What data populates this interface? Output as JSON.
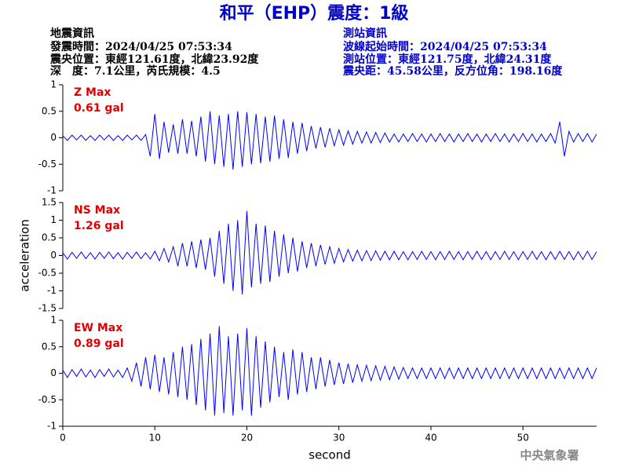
{
  "header": {
    "title": "和平（EHP）震度：1級",
    "left": [
      "地震資訊",
      "發震時間：2024/04/25 07:53:34",
      "震央位置：東經121.61度，北緯23.92度",
      "深　度：7.1公里，芮氏規模：4.5"
    ],
    "right": [
      "測站資訊",
      "波線起始時間：2024/04/25 07:53:34",
      "測站位置：東經121.75度，北緯24.31度",
      "震央距：45.58公里，反方位角：198.16度"
    ]
  },
  "footer": "中央氣象署",
  "chart_data": [
    {
      "type": "line",
      "annotations": [
        "Z Max",
        "0.61 gal"
      ],
      "annotation_color": "#e00000",
      "xlim": [
        0,
        58
      ],
      "ylim": [
        -1,
        1
      ],
      "yticks": [
        -1,
        -0.5,
        0,
        0.5,
        1
      ],
      "x": [
        0,
        0.5,
        1,
        1.5,
        2,
        2.5,
        3,
        3.5,
        4,
        4.5,
        5,
        5.5,
        6,
        6.5,
        7,
        7.5,
        8,
        8.5,
        9,
        9.5,
        10,
        10.5,
        11,
        11.5,
        12,
        12.5,
        13,
        13.5,
        14,
        14.5,
        15,
        15.5,
        16,
        16.5,
        17,
        17.5,
        18,
        18.5,
        19,
        19.5,
        20,
        20.5,
        21,
        21.5,
        22,
        22.5,
        23,
        23.5,
        24,
        24.5,
        25,
        25.5,
        26,
        26.5,
        27,
        27.5,
        28,
        28.5,
        29,
        29.5,
        30,
        30.5,
        31,
        31.5,
        32,
        32.5,
        33,
        33.5,
        34,
        34.5,
        35,
        35.5,
        36,
        36.5,
        37,
        37.5,
        38,
        38.5,
        39,
        39.5,
        40,
        40.5,
        41,
        41.5,
        42,
        42.5,
        43,
        43.5,
        44,
        44.5,
        45,
        45.5,
        46,
        46.5,
        47,
        47.5,
        48,
        48.5,
        49,
        49.5,
        50,
        50.5,
        51,
        51.5,
        52,
        52.5,
        53,
        53.5,
        54,
        54.5,
        55,
        55.5,
        56,
        56.5,
        57,
        57.5,
        58
      ],
      "series": [
        {
          "color": "#0000ff",
          "values": [
            0.04,
            -0.05,
            0.05,
            -0.04,
            0.05,
            -0.05,
            0.04,
            -0.05,
            0.05,
            -0.04,
            0.05,
            -0.05,
            0.04,
            -0.05,
            0.05,
            -0.04,
            0.05,
            -0.05,
            0.06,
            -0.35,
            0.45,
            -0.4,
            0.3,
            -0.28,
            0.25,
            -0.3,
            0.35,
            -0.3,
            0.32,
            -0.35,
            0.4,
            -0.45,
            0.5,
            -0.5,
            0.42,
            -0.55,
            0.45,
            -0.6,
            0.5,
            -0.55,
            0.48,
            -0.5,
            0.45,
            -0.48,
            0.4,
            -0.45,
            0.42,
            -0.4,
            0.35,
            -0.38,
            0.3,
            -0.3,
            0.28,
            -0.25,
            0.22,
            -0.2,
            0.2,
            -0.18,
            0.18,
            -0.15,
            0.15,
            -0.14,
            0.13,
            -0.12,
            0.12,
            -0.1,
            0.11,
            -0.1,
            0.1,
            -0.09,
            0.09,
            -0.08,
            0.07,
            -0.08,
            0.07,
            -0.07,
            0.08,
            -0.07,
            0.07,
            -0.08,
            0.07,
            -0.07,
            0.08,
            -0.07,
            0.07,
            -0.08,
            0.07,
            -0.07,
            0.08,
            -0.07,
            0.07,
            -0.08,
            0.07,
            -0.07,
            0.08,
            -0.07,
            0.07,
            -0.08,
            0.07,
            -0.07,
            0.08,
            -0.07,
            0.07,
            -0.08,
            0.07,
            -0.07,
            0.08,
            -0.1,
            0.3,
            -0.35,
            0.12,
            -0.08,
            0.08,
            -0.07,
            0.08,
            -0.08,
            0.07
          ]
        }
      ]
    },
    {
      "type": "line",
      "annotations": [
        "NS Max",
        "1.26 gal"
      ],
      "annotation_color": "#e00000",
      "ylabel": "acceleration",
      "xlim": [
        0,
        58
      ],
      "ylim": [
        -1.5,
        1.5
      ],
      "yticks": [
        -1.5,
        -1,
        -0.5,
        0,
        0.5,
        1,
        1.5
      ],
      "x": [
        0,
        0.5,
        1,
        1.5,
        2,
        2.5,
        3,
        3.5,
        4,
        4.5,
        5,
        5.5,
        6,
        6.5,
        7,
        7.5,
        8,
        8.5,
        9,
        9.5,
        10,
        10.5,
        11,
        11.5,
        12,
        12.5,
        13,
        13.5,
        14,
        14.5,
        15,
        15.5,
        16,
        16.5,
        17,
        17.5,
        18,
        18.5,
        19,
        19.5,
        20,
        20.5,
        21,
        21.5,
        22,
        22.5,
        23,
        23.5,
        24,
        24.5,
        25,
        25.5,
        26,
        26.5,
        27,
        27.5,
        28,
        28.5,
        29,
        29.5,
        30,
        30.5,
        31,
        31.5,
        32,
        32.5,
        33,
        33.5,
        34,
        34.5,
        35,
        35.5,
        36,
        36.5,
        37,
        37.5,
        38,
        38.5,
        39,
        39.5,
        40,
        40.5,
        41,
        41.5,
        42,
        42.5,
        43,
        43.5,
        44,
        44.5,
        45,
        45.5,
        46,
        46.5,
        47,
        47.5,
        48,
        48.5,
        49,
        49.5,
        50,
        50.5,
        51,
        51.5,
        52,
        52.5,
        53,
        53.5,
        54,
        54.5,
        55,
        55.5,
        56,
        56.5,
        57,
        57.5,
        58
      ],
      "series": [
        {
          "color": "#0000ff",
          "values": [
            0.08,
            -0.1,
            0.09,
            -0.08,
            0.1,
            -0.09,
            0.08,
            -0.1,
            0.09,
            -0.08,
            0.1,
            -0.09,
            0.08,
            -0.1,
            0.09,
            -0.08,
            0.1,
            -0.09,
            0.08,
            -0.1,
            0.12,
            -0.15,
            0.2,
            -0.18,
            0.25,
            -0.3,
            0.35,
            -0.3,
            0.4,
            -0.35,
            0.45,
            -0.4,
            0.5,
            -0.6,
            0.7,
            -0.8,
            0.9,
            -1.0,
            1.0,
            -1.1,
            1.26,
            -0.9,
            0.9,
            -0.8,
            0.85,
            -0.75,
            0.7,
            -0.6,
            0.6,
            -0.5,
            0.5,
            -0.45,
            0.4,
            -0.35,
            0.35,
            -0.3,
            0.3,
            -0.25,
            0.25,
            -0.22,
            0.2,
            -0.18,
            0.17,
            -0.16,
            0.15,
            -0.15,
            0.14,
            -0.14,
            0.13,
            -0.13,
            0.12,
            -0.12,
            0.12,
            -0.12,
            0.11,
            -0.12,
            0.11,
            -0.11,
            0.12,
            -0.11,
            0.11,
            -0.12,
            0.11,
            -0.11,
            0.12,
            -0.11,
            0.11,
            -0.12,
            0.11,
            -0.11,
            0.12,
            -0.11,
            0.11,
            -0.12,
            0.11,
            -0.11,
            0.12,
            -0.11,
            0.11,
            -0.12,
            0.11,
            -0.11,
            0.12,
            -0.11,
            0.11,
            -0.12,
            0.11,
            -0.11,
            0.12,
            -0.11,
            0.11,
            -0.12,
            0.11,
            -0.11,
            0.12,
            -0.11,
            0.11
          ]
        }
      ]
    },
    {
      "type": "line",
      "annotations": [
        "EW Max",
        "0.89 gal"
      ],
      "annotation_color": "#e00000",
      "xlabel": "second",
      "xlim": [
        0,
        58
      ],
      "xticks": [
        0,
        10,
        20,
        30,
        40,
        50
      ],
      "ylim": [
        -1,
        1
      ],
      "yticks": [
        -1,
        -0.5,
        0,
        0.5,
        1
      ],
      "x": [
        0,
        0.5,
        1,
        1.5,
        2,
        2.5,
        3,
        3.5,
        4,
        4.5,
        5,
        5.5,
        6,
        6.5,
        7,
        7.5,
        8,
        8.5,
        9,
        9.5,
        10,
        10.5,
        11,
        11.5,
        12,
        12.5,
        13,
        13.5,
        14,
        14.5,
        15,
        15.5,
        16,
        16.5,
        17,
        17.5,
        18,
        18.5,
        19,
        19.5,
        20,
        20.5,
        21,
        21.5,
        22,
        22.5,
        23,
        23.5,
        24,
        24.5,
        25,
        25.5,
        26,
        26.5,
        27,
        27.5,
        28,
        28.5,
        29,
        29.5,
        30,
        30.5,
        31,
        31.5,
        32,
        32.5,
        33,
        33.5,
        34,
        34.5,
        35,
        35.5,
        36,
        36.5,
        37,
        37.5,
        38,
        38.5,
        39,
        39.5,
        40,
        40.5,
        41,
        41.5,
        42,
        42.5,
        43,
        43.5,
        44,
        44.5,
        45,
        45.5,
        46,
        46.5,
        47,
        47.5,
        48,
        48.5,
        49,
        49.5,
        50,
        50.5,
        51,
        51.5,
        52,
        52.5,
        53,
        53.5,
        54,
        54.5,
        55,
        55.5,
        56,
        56.5,
        57,
        57.5,
        58
      ],
      "series": [
        {
          "color": "#0000ff",
          "values": [
            0.06,
            -0.08,
            0.07,
            -0.06,
            0.08,
            -0.07,
            0.06,
            -0.08,
            0.07,
            -0.06,
            0.08,
            -0.07,
            0.06,
            -0.08,
            0.1,
            -0.15,
            0.2,
            -0.25,
            0.3,
            -0.3,
            0.35,
            -0.35,
            0.3,
            -0.4,
            0.4,
            -0.45,
            0.5,
            -0.5,
            0.55,
            -0.6,
            0.65,
            -0.7,
            0.75,
            -0.8,
            0.89,
            -0.75,
            0.7,
            -0.8,
            0.75,
            -0.7,
            0.85,
            -0.8,
            0.7,
            -0.65,
            0.6,
            -0.55,
            0.5,
            -0.45,
            0.4,
            -0.5,
            0.45,
            -0.4,
            0.4,
            -0.35,
            0.3,
            -0.3,
            0.3,
            -0.25,
            0.25,
            -0.22,
            0.2,
            -0.2,
            0.18,
            -0.18,
            0.16,
            -0.15,
            0.15,
            -0.14,
            0.14,
            -0.13,
            0.13,
            -0.12,
            0.12,
            -0.11,
            0.11,
            -0.1,
            0.1,
            -0.1,
            0.1,
            -0.1,
            0.1,
            -0.1,
            0.1,
            -0.1,
            0.1,
            -0.1,
            0.1,
            -0.1,
            0.1,
            -0.1,
            0.1,
            -0.1,
            0.1,
            -0.1,
            0.1,
            -0.1,
            0.1,
            -0.1,
            0.1,
            -0.1,
            0.1,
            -0.1,
            0.1,
            -0.1,
            0.1,
            -0.1,
            0.1,
            -0.1,
            0.1,
            -0.1,
            0.1,
            -0.1,
            0.1,
            -0.1,
            0.1,
            -0.1,
            0.1
          ]
        }
      ]
    }
  ]
}
